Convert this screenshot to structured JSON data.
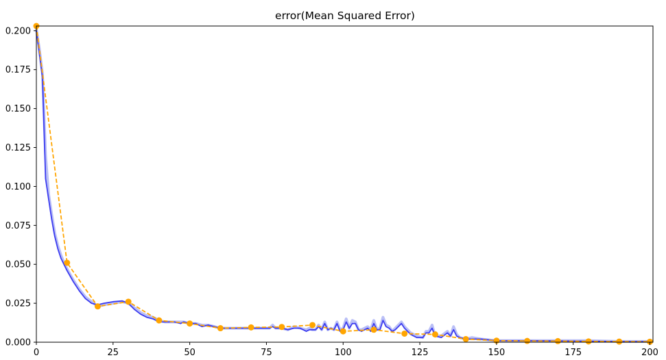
{
  "chart_data": {
    "type": "line",
    "title": "error(Mean Squared Error)",
    "xlabel": "",
    "ylabel": "",
    "xlim": [
      0,
      201
    ],
    "ylim": [
      0,
      0.203
    ],
    "grid": false,
    "x_ticks": [
      0,
      25,
      50,
      75,
      100,
      125,
      150,
      175,
      200
    ],
    "x_tick_labels": [
      "0",
      "25",
      "50",
      "75",
      "100",
      "125",
      "150",
      "175",
      "200"
    ],
    "y_ticks": [
      0,
      0.025,
      0.05,
      0.075,
      0.1,
      0.125,
      0.15,
      0.175,
      0.2
    ],
    "y_tick_labels": [
      "0.000",
      "0.025",
      "0.050",
      "0.075",
      "0.100",
      "0.125",
      "0.150",
      "0.175",
      "0.200"
    ],
    "series": [
      {
        "style": "band",
        "color": "#aeb4f5",
        "x": [
          0,
          1,
          2,
          3,
          4,
          5,
          6,
          7,
          8,
          9,
          10,
          12,
          14,
          16,
          18,
          20,
          22,
          25,
          28,
          30,
          32,
          34,
          36,
          38,
          40,
          42,
          45,
          47,
          48,
          50,
          52,
          54,
          56,
          58,
          60,
          62,
          65,
          68,
          70,
          72,
          74,
          76,
          77,
          78,
          80,
          82,
          84,
          86,
          88,
          89,
          90,
          91,
          92,
          93,
          94,
          95,
          96,
          97,
          98,
          99,
          100,
          101,
          102,
          103,
          104,
          105,
          106,
          107,
          108,
          109,
          110,
          111,
          112,
          113,
          114,
          115,
          116,
          117,
          118,
          119,
          120,
          122,
          124,
          126,
          127,
          128,
          129,
          130,
          132,
          134,
          135,
          136,
          137,
          138,
          140,
          142,
          145,
          150,
          160,
          170,
          180,
          190,
          200
        ],
        "y": [
          0.201,
          0.188,
          0.172,
          0.12,
          0.095,
          0.082,
          0.07,
          0.062,
          0.056,
          0.051,
          0.047,
          0.04,
          0.034,
          0.029,
          0.026,
          0.023,
          0.024,
          0.025,
          0.026,
          0.025,
          0.022,
          0.019,
          0.017,
          0.016,
          0.014,
          0.013,
          0.013,
          0.013,
          0.013,
          0.012,
          0.012,
          0.011,
          0.011,
          0.01,
          0.009,
          0.009,
          0.009,
          0.009,
          0.009,
          0.009,
          0.009,
          0.009,
          0.011,
          0.009,
          0.009,
          0.008,
          0.01,
          0.009,
          0.008,
          0.009,
          0.008,
          0.008,
          0.011,
          0.008,
          0.013,
          0.008,
          0.009,
          0.008,
          0.013,
          0.008,
          0.009,
          0.015,
          0.009,
          0.014,
          0.013,
          0.008,
          0.008,
          0.009,
          0.01,
          0.008,
          0.014,
          0.008,
          0.009,
          0.016,
          0.011,
          0.01,
          0.007,
          0.009,
          0.011,
          0.013,
          0.01,
          0.006,
          0.004,
          0.003,
          0.007,
          0.007,
          0.011,
          0.004,
          0.004,
          0.007,
          0.004,
          0.01,
          0.005,
          0.003,
          0.002,
          0.003,
          0.002,
          0.001,
          0.001,
          0.001,
          0.001,
          0.0005,
          0.0005
        ]
      },
      {
        "style": "solid",
        "color": "#3b3bf0",
        "x": [
          0,
          1,
          2,
          3,
          4,
          5,
          6,
          7,
          8,
          9,
          10,
          12,
          14,
          16,
          18,
          20,
          22,
          25,
          28,
          30,
          32,
          34,
          36,
          38,
          40,
          42,
          45,
          47,
          48,
          50,
          52,
          54,
          56,
          58,
          60,
          62,
          65,
          68,
          70,
          72,
          74,
          76,
          77,
          78,
          80,
          82,
          84,
          86,
          88,
          89,
          90,
          91,
          92,
          93,
          94,
          95,
          96,
          97,
          98,
          99,
          100,
          101,
          102,
          103,
          104,
          105,
          106,
          107,
          108,
          109,
          110,
          111,
          112,
          113,
          114,
          115,
          116,
          117,
          118,
          119,
          120,
          122,
          124,
          126,
          127,
          128,
          129,
          130,
          132,
          134,
          135,
          136,
          137,
          138,
          140,
          142,
          145,
          150,
          160,
          170,
          180,
          190,
          200
        ],
        "y": [
          0.2,
          0.185,
          0.17,
          0.105,
          0.092,
          0.079,
          0.068,
          0.06,
          0.054,
          0.05,
          0.046,
          0.039,
          0.033,
          0.028,
          0.025,
          0.024,
          0.025,
          0.026,
          0.0265,
          0.025,
          0.021,
          0.018,
          0.016,
          0.015,
          0.013,
          0.013,
          0.013,
          0.012,
          0.013,
          0.012,
          0.012,
          0.01,
          0.011,
          0.01,
          0.009,
          0.009,
          0.009,
          0.009,
          0.009,
          0.009,
          0.009,
          0.009,
          0.01,
          0.009,
          0.009,
          0.008,
          0.009,
          0.009,
          0.007,
          0.008,
          0.008,
          0.008,
          0.01,
          0.008,
          0.012,
          0.008,
          0.009,
          0.008,
          0.012,
          0.007,
          0.008,
          0.013,
          0.009,
          0.012,
          0.012,
          0.008,
          0.007,
          0.008,
          0.009,
          0.007,
          0.012,
          0.008,
          0.008,
          0.014,
          0.01,
          0.009,
          0.007,
          0.008,
          0.01,
          0.012,
          0.009,
          0.005,
          0.003,
          0.003,
          0.006,
          0.006,
          0.009,
          0.004,
          0.003,
          0.006,
          0.004,
          0.008,
          0.004,
          0.003,
          0.002,
          0.002,
          0.002,
          0.001,
          0.001,
          0.0008,
          0.0006,
          0.0004,
          0.0004
        ]
      },
      {
        "style": "dashed-markers",
        "color": "#ffa500",
        "x": [
          0,
          10,
          20,
          30,
          40,
          50,
          60,
          70,
          80,
          90,
          100,
          110,
          120,
          130,
          140,
          150,
          160,
          170,
          180,
          190,
          200
        ],
        "y": [
          0.203,
          0.051,
          0.023,
          0.026,
          0.014,
          0.012,
          0.009,
          0.0095,
          0.0098,
          0.011,
          0.007,
          0.008,
          0.0055,
          0.005,
          0.002,
          0.001,
          0.0008,
          0.0007,
          0.0005,
          0.0004,
          0.0003
        ]
      }
    ]
  }
}
